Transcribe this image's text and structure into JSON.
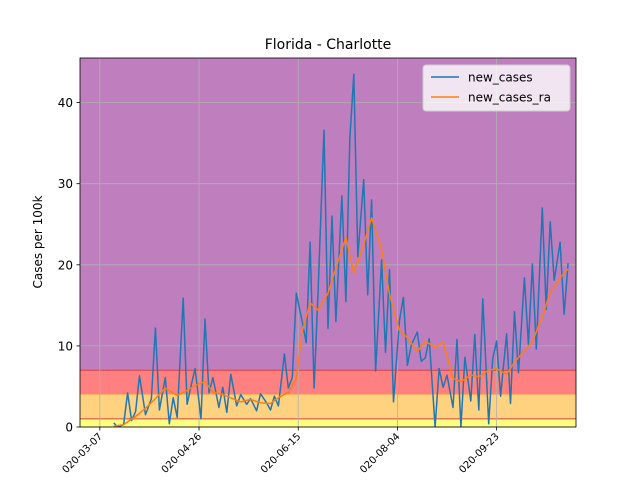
{
  "chart_data": {
    "type": "line",
    "title": "Florida - Charlotte",
    "xlabel": "",
    "ylabel": "Cases per 100k",
    "ylim": [
      0,
      45.5
    ],
    "yticks": [
      0,
      10,
      20,
      30,
      40
    ],
    "xlim": [
      "2020-02-26",
      "2020-11-02"
    ],
    "xticks": [
      "2020-03-07",
      "2020-04-26",
      "2020-06-15",
      "2020-08-04",
      "2020-09-23"
    ],
    "xticks_shown": [
      "020-03-07",
      "020-04-26",
      "020-06-15",
      "020-08-04",
      "020-09-23"
    ],
    "grid": true,
    "legend_position": "top-right",
    "bands": [
      {
        "from": 0,
        "to": 1,
        "color": "#ffff80"
      },
      {
        "from": 1,
        "to": 4,
        "color": "#ffd280"
      },
      {
        "from": 4,
        "to": 7,
        "color": "#ff8080"
      },
      {
        "from": 7,
        "to": 45.5,
        "color": "#bf7fbf"
      }
    ],
    "series": [
      {
        "name": "new_cases",
        "color": "#1f77b4",
        "x": [
          "2020-03-14",
          "2020-03-16",
          "2020-03-19",
          "2020-03-21",
          "2020-03-23",
          "2020-03-25",
          "2020-03-27",
          "2020-03-30",
          "2020-04-02",
          "2020-04-04",
          "2020-04-06",
          "2020-04-09",
          "2020-04-11",
          "2020-04-13",
          "2020-04-15",
          "2020-04-18",
          "2020-04-20",
          "2020-04-22",
          "2020-04-24",
          "2020-04-27",
          "2020-04-29",
          "2020-05-01",
          "2020-05-03",
          "2020-05-06",
          "2020-05-08",
          "2020-05-10",
          "2020-05-12",
          "2020-05-15",
          "2020-05-17",
          "2020-05-20",
          "2020-05-22",
          "2020-05-25",
          "2020-05-27",
          "2020-05-30",
          "2020-06-01",
          "2020-06-03",
          "2020-06-05",
          "2020-06-08",
          "2020-06-10",
          "2020-06-12",
          "2020-06-14",
          "2020-06-17",
          "2020-06-19",
          "2020-06-21",
          "2020-06-23",
          "2020-06-25",
          "2020-06-28",
          "2020-06-30",
          "2020-07-02",
          "2020-07-04",
          "2020-07-07",
          "2020-07-09",
          "2020-07-11",
          "2020-07-13",
          "2020-07-15",
          "2020-07-18",
          "2020-07-20",
          "2020-07-22",
          "2020-07-24",
          "2020-07-27",
          "2020-07-29",
          "2020-07-31",
          "2020-08-02",
          "2020-08-05",
          "2020-08-07",
          "2020-08-09",
          "2020-08-11",
          "2020-08-14",
          "2020-08-16",
          "2020-08-18",
          "2020-08-20",
          "2020-08-23",
          "2020-08-25",
          "2020-08-27",
          "2020-08-29",
          "2020-09-01",
          "2020-09-03",
          "2020-09-05",
          "2020-09-07",
          "2020-09-10",
          "2020-09-12",
          "2020-09-14",
          "2020-09-16",
          "2020-09-19",
          "2020-09-21",
          "2020-09-23",
          "2020-09-25",
          "2020-09-28",
          "2020-09-30",
          "2020-10-02",
          "2020-10-04",
          "2020-10-07",
          "2020-10-09",
          "2020-10-11",
          "2020-10-13",
          "2020-10-16",
          "2020-10-18",
          "2020-10-20",
          "2020-10-22",
          "2020-10-25",
          "2020-10-27",
          "2020-10-29"
        ],
        "values": [
          0.5,
          0,
          0.3,
          4.2,
          0.8,
          1.9,
          6.3,
          1.5,
          3.5,
          12.2,
          2.1,
          6.1,
          0.4,
          3.6,
          1.2,
          15.9,
          2.8,
          5.1,
          7.2,
          1.0,
          13.3,
          4.2,
          6.1,
          2.4,
          4.9,
          1.8,
          6.5,
          2.6,
          4.0,
          2.8,
          3.5,
          2.0,
          4.1,
          3.0,
          2.1,
          3.8,
          2.6,
          9.0,
          4.8,
          6.1,
          16.5,
          13.0,
          10.4,
          22.8,
          4.8,
          16.8,
          36.6,
          12.2,
          26.0,
          13.0,
          28.5,
          15.5,
          35.5,
          43.5,
          21.0,
          30.5,
          16.3,
          28.0,
          6.9,
          20.6,
          9.2,
          19.4,
          3.1,
          13.1,
          16.0,
          7.6,
          10.1,
          11.7,
          8.1,
          8.5,
          10.9,
          0,
          7.2,
          4.9,
          6.4,
          2.4,
          10.8,
          0,
          8.6,
          3.2,
          11.4,
          2.1,
          15.8,
          0.4,
          8.4,
          10.6,
          3.8,
          11.5,
          2.9,
          14.2,
          6.7,
          18.4,
          10.2,
          20.1,
          9.6,
          27.0,
          14.5,
          25.3,
          18.1,
          22.8,
          13.9,
          20.2
        ]
      },
      {
        "name": "new_cases_ra",
        "color": "#ff7f0e",
        "x": [
          "2020-03-14",
          "2020-03-19",
          "2020-03-25",
          "2020-03-30",
          "2020-04-04",
          "2020-04-09",
          "2020-04-15",
          "2020-04-20",
          "2020-04-24",
          "2020-04-29",
          "2020-05-03",
          "2020-05-08",
          "2020-05-12",
          "2020-05-17",
          "2020-05-22",
          "2020-05-27",
          "2020-06-01",
          "2020-06-05",
          "2020-06-10",
          "2020-06-14",
          "2020-06-17",
          "2020-06-21",
          "2020-06-25",
          "2020-06-30",
          "2020-07-04",
          "2020-07-09",
          "2020-07-13",
          "2020-07-18",
          "2020-07-22",
          "2020-07-27",
          "2020-07-31",
          "2020-08-05",
          "2020-08-09",
          "2020-08-14",
          "2020-08-18",
          "2020-08-23",
          "2020-08-27",
          "2020-09-01",
          "2020-09-05",
          "2020-09-10",
          "2020-09-14",
          "2020-09-19",
          "2020-09-23",
          "2020-09-28",
          "2020-10-02",
          "2020-10-07",
          "2020-10-11",
          "2020-10-16",
          "2020-10-20",
          "2020-10-25",
          "2020-10-29"
        ],
        "values": [
          0.1,
          0.3,
          1.3,
          2.3,
          3.5,
          4.8,
          3.9,
          4.5,
          5.1,
          5.6,
          4.3,
          4.0,
          3.6,
          3.1,
          3.4,
          3.0,
          2.9,
          3.6,
          4.3,
          6.0,
          11.8,
          15.3,
          14.4,
          16.5,
          19.6,
          23.4,
          19.0,
          22.5,
          25.8,
          21.9,
          16.4,
          11.9,
          11.0,
          9.3,
          10.6,
          9.8,
          10.5,
          6.0,
          5.6,
          6.4,
          6.2,
          7.0,
          7.2,
          6.5,
          8.0,
          9.4,
          10.5,
          13.6,
          16.6,
          18.4,
          19.5
        ]
      }
    ]
  }
}
